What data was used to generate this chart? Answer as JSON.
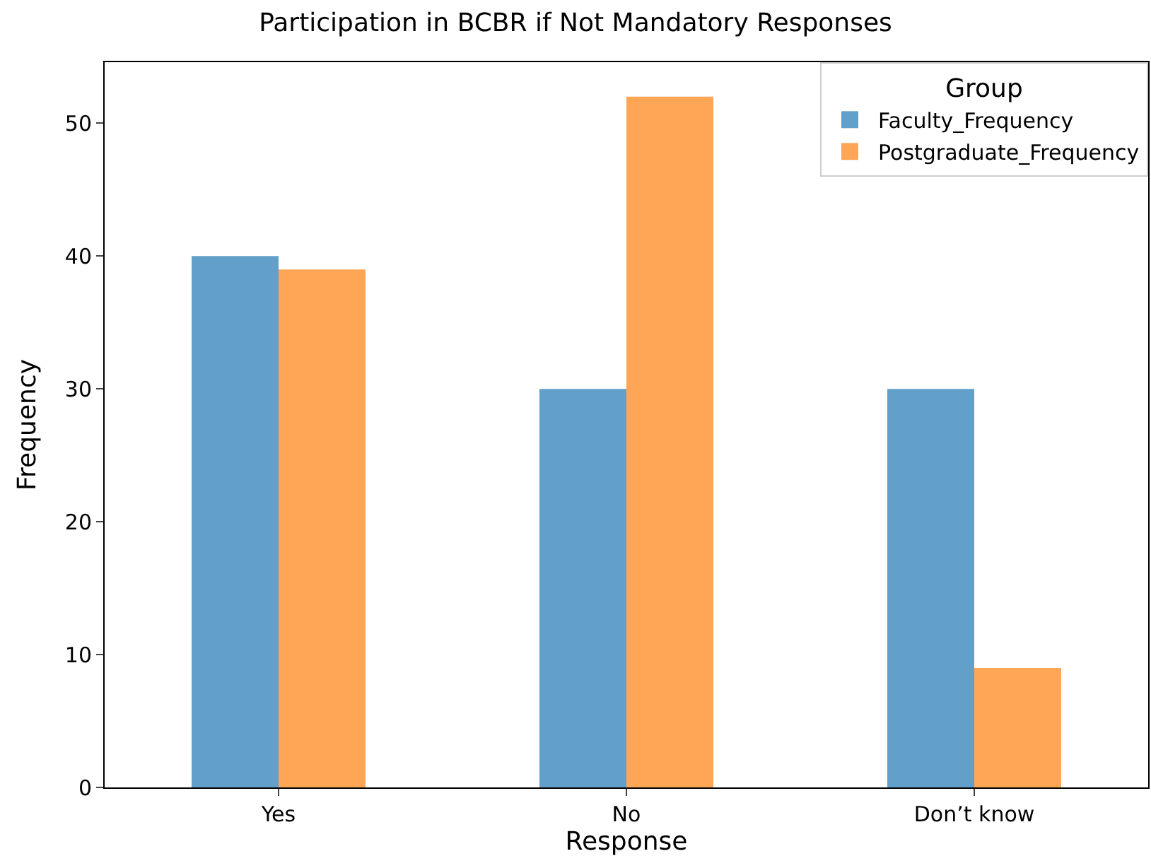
{
  "chart_data": {
    "type": "bar",
    "title": "Participation in BCBR if Not Mandatory Responses",
    "xlabel": "Response",
    "ylabel": "Frequency",
    "legend_title": "Group",
    "categories": [
      "Yes",
      "No",
      "Don’t know"
    ],
    "series": [
      {
        "name": "Faculty_Frequency",
        "color": "#62a0ca",
        "values": [
          40,
          30,
          30
        ]
      },
      {
        "name": "Postgraduate_Frequency",
        "color": "#ffa556",
        "values": [
          39,
          52,
          9
        ]
      }
    ],
    "ylim": [
      0,
      54.6
    ],
    "yticks": [
      0,
      10,
      20,
      30,
      40,
      50
    ],
    "legend": "top right"
  }
}
